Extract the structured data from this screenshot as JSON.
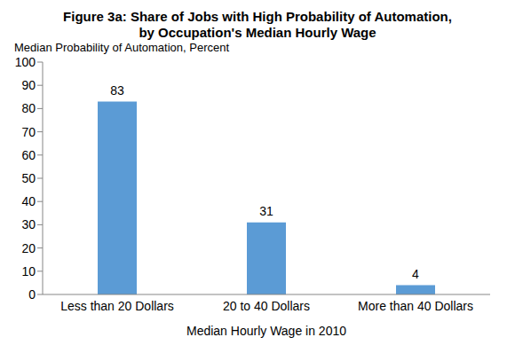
{
  "chart_data": {
    "type": "bar",
    "title": "Figure 3a: Share of Jobs with High Probability of Automation, by Occupation's Median Hourly Wage",
    "y_label": "Median Probability of Automation, Percent",
    "x_label": "Median Hourly Wage in 2010",
    "categories": [
      "Less than 20 Dollars",
      "20 to 40 Dollars",
      "More than 40 Dollars"
    ],
    "values": [
      83,
      31,
      4
    ],
    "color": "#5b9bd5",
    "ylim": [
      0,
      100
    ],
    "yticks": [
      0,
      10,
      20,
      30,
      40,
      50,
      60,
      70,
      80,
      90,
      100
    ],
    "data_labels": true,
    "grid": false
  }
}
